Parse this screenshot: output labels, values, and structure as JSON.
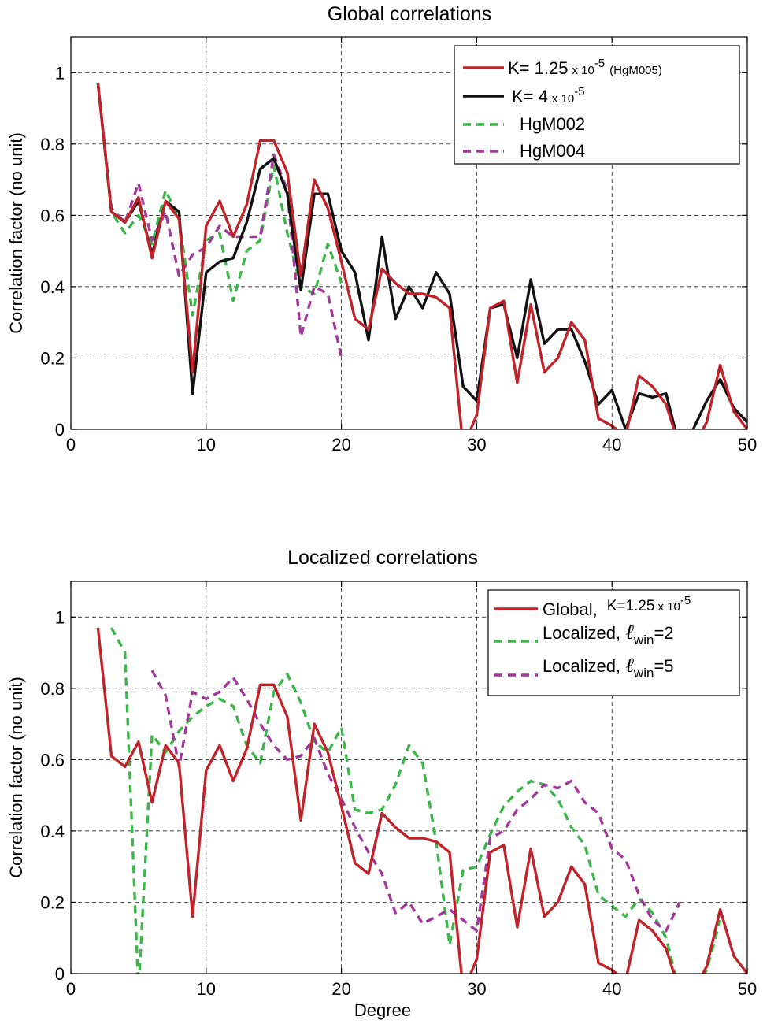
{
  "colors": {
    "red": "#c1232b",
    "black": "#111111",
    "green": "#3cb54a",
    "purple": "#a0399a"
  },
  "chart_data": [
    {
      "type": "line",
      "title": "Global correlations",
      "xlabel": "",
      "ylabel": "Correlation factor (no unit)",
      "xlim": [
        0,
        50
      ],
      "ylim": [
        0,
        1.1
      ],
      "xticks": [
        "0",
        "10",
        "20",
        "30",
        "40",
        "50"
      ],
      "yticks": [
        "0",
        "0.2",
        "0.4",
        "0.6",
        "0.8",
        "1"
      ],
      "grid": true,
      "legend_position": "top-right",
      "legend": {
        "red_prefix": "K= 1.25",
        "red_times": "x 10",
        "red_exp": "-5",
        "red_suffix": "(HgM005)",
        "black_prefix": "K= 4",
        "black_times": "x 10",
        "black_exp": "-5",
        "green_name": "HgM002",
        "purple_name": "HgM004"
      },
      "series": [
        {
          "name": "K= 1.25 x 10-5 (HgM005)",
          "color": "red",
          "style": "solid",
          "x": [
            2,
            3,
            4,
            5,
            6,
            7,
            8,
            9,
            10,
            11,
            12,
            13,
            14,
            15,
            16,
            17,
            18,
            19,
            20,
            21,
            22,
            23,
            24,
            25,
            26,
            27,
            28,
            29,
            30,
            31,
            32,
            33,
            34,
            35,
            36,
            37,
            38,
            39,
            40,
            41,
            42,
            43,
            44,
            45,
            46,
            47,
            48,
            49,
            50
          ],
          "y": [
            0.97,
            0.61,
            0.58,
            0.65,
            0.48,
            0.64,
            0.59,
            0.16,
            0.57,
            0.64,
            0.54,
            0.63,
            0.81,
            0.81,
            0.72,
            0.43,
            0.7,
            0.62,
            0.47,
            0.31,
            0.28,
            0.45,
            0.41,
            0.38,
            0.38,
            0.37,
            0.34,
            -0.05,
            0.04,
            0.34,
            0.36,
            0.13,
            0.35,
            0.16,
            0.2,
            0.3,
            0.25,
            0.03,
            0.01,
            -0.02,
            0.15,
            0.12,
            0.07,
            -0.05,
            -0.05,
            0.02,
            0.18,
            0.05,
            0.0
          ]
        },
        {
          "name": "K= 4 x 10-5",
          "color": "black",
          "style": "solid",
          "x": [
            2,
            3,
            4,
            5,
            6,
            7,
            8,
            9,
            10,
            11,
            12,
            13,
            14,
            15,
            16,
            17,
            18,
            19,
            20,
            21,
            22,
            23,
            24,
            25,
            26,
            27,
            28,
            29,
            30,
            31,
            32,
            33,
            34,
            35,
            36,
            37,
            38,
            39,
            40,
            41,
            42,
            43,
            44,
            45,
            46,
            47,
            48,
            49,
            50
          ],
          "y": [
            0.97,
            0.61,
            0.58,
            0.64,
            0.49,
            0.64,
            0.61,
            0.1,
            0.44,
            0.47,
            0.48,
            0.58,
            0.73,
            0.76,
            0.66,
            0.39,
            0.66,
            0.66,
            0.5,
            0.44,
            0.25,
            0.54,
            0.31,
            0.4,
            0.34,
            0.44,
            0.38,
            0.12,
            0.08,
            0.34,
            0.35,
            0.2,
            0.42,
            0.24,
            0.28,
            0.28,
            0.19,
            0.07,
            0.11,
            0.0,
            0.1,
            0.09,
            0.1,
            -0.05,
            0.0,
            0.08,
            0.14,
            0.06,
            0.02
          ]
        },
        {
          "name": "HgM002",
          "color": "green",
          "style": "dashed",
          "x": [
            2,
            3,
            4,
            5,
            6,
            7,
            8,
            9,
            10,
            11,
            12,
            13,
            14,
            15,
            16,
            17,
            18,
            19,
            20
          ],
          "y": [
            0.97,
            0.61,
            0.55,
            0.6,
            0.52,
            0.67,
            0.59,
            0.32,
            0.53,
            0.55,
            0.36,
            0.5,
            0.53,
            0.74,
            0.55,
            0.4,
            0.38,
            0.52,
            0.41
          ]
        },
        {
          "name": "HgM004",
          "color": "purple",
          "style": "dashed",
          "x": [
            2,
            3,
            4,
            5,
            6,
            7,
            8,
            9,
            10,
            11,
            12,
            13,
            14,
            15,
            16,
            17,
            18,
            19,
            20
          ],
          "y": [
            0.97,
            0.62,
            0.58,
            0.69,
            0.53,
            0.61,
            0.43,
            0.49,
            0.51,
            0.57,
            0.54,
            0.54,
            0.54,
            0.77,
            0.67,
            0.26,
            0.4,
            0.38,
            0.2
          ]
        }
      ]
    },
    {
      "type": "line",
      "title": "Localized correlations",
      "xlabel": "Degree",
      "ylabel": "Correlation factor (no unit)",
      "xlim": [
        0,
        50
      ],
      "ylim": [
        0,
        1.1
      ],
      "xticks": [
        "0",
        "10",
        "20",
        "30",
        "40",
        "50"
      ],
      "yticks": [
        "0",
        "0.2",
        "0.4",
        "0.6",
        "0.8",
        "1"
      ],
      "grid": true,
      "legend_position": "top-right",
      "legend": {
        "red_name": "Global,",
        "red_k": "K=1.25",
        "red_times": "x 10",
        "red_exp": "-5",
        "green_prefix": "Localized,",
        "green_sub": "win",
        "green_suffix": "=2",
        "purple_prefix": "Localized,",
        "purple_sub": "win",
        "purple_suffix": "=5",
        "ell": "ℓ"
      },
      "series": [
        {
          "name": "Global, K=1.25 x 10-5",
          "color": "red",
          "style": "solid",
          "x": [
            2,
            3,
            4,
            5,
            6,
            7,
            8,
            9,
            10,
            11,
            12,
            13,
            14,
            15,
            16,
            17,
            18,
            19,
            20,
            21,
            22,
            23,
            24,
            25,
            26,
            27,
            28,
            29,
            30,
            31,
            32,
            33,
            34,
            35,
            36,
            37,
            38,
            39,
            40,
            41,
            42,
            43,
            44,
            45,
            46,
            47,
            48,
            49,
            50
          ],
          "y": [
            0.97,
            0.61,
            0.58,
            0.65,
            0.48,
            0.64,
            0.59,
            0.16,
            0.57,
            0.64,
            0.54,
            0.63,
            0.81,
            0.81,
            0.72,
            0.43,
            0.7,
            0.62,
            0.47,
            0.31,
            0.28,
            0.45,
            0.41,
            0.38,
            0.38,
            0.37,
            0.34,
            -0.05,
            0.04,
            0.34,
            0.36,
            0.13,
            0.35,
            0.16,
            0.2,
            0.3,
            0.25,
            0.03,
            0.01,
            -0.02,
            0.15,
            0.12,
            0.07,
            -0.05,
            -0.05,
            0.02,
            0.18,
            0.05,
            0.0
          ]
        },
        {
          "name": "Localized, ℓwin=2",
          "color": "green",
          "style": "dashed",
          "x": [
            3,
            4,
            5,
            6,
            7,
            8,
            9,
            10,
            11,
            12,
            13,
            14,
            15,
            16,
            17,
            18,
            19,
            20,
            21,
            22,
            23,
            24,
            25,
            26,
            27,
            28,
            29,
            30,
            31,
            32,
            33,
            34,
            35,
            36,
            37,
            38,
            39,
            40,
            41,
            42,
            43,
            44,
            45,
            46,
            47,
            48
          ],
          "y": [
            0.97,
            0.9,
            -0.05,
            0.67,
            0.62,
            0.68,
            0.72,
            0.75,
            0.77,
            0.75,
            0.64,
            0.59,
            0.79,
            0.84,
            0.76,
            0.65,
            0.62,
            0.69,
            0.46,
            0.45,
            0.46,
            0.53,
            0.64,
            0.59,
            0.37,
            0.08,
            0.29,
            0.3,
            0.39,
            0.47,
            0.51,
            0.54,
            0.53,
            0.49,
            0.41,
            0.36,
            0.22,
            0.19,
            0.16,
            0.21,
            0.17,
            0.1,
            -0.05,
            -0.05,
            0.01,
            0.15
          ]
        },
        {
          "name": "Localized, ℓwin=5",
          "color": "purple",
          "style": "dashed",
          "x": [
            6,
            7,
            8,
            9,
            10,
            11,
            12,
            13,
            14,
            15,
            16,
            17,
            18,
            19,
            20,
            21,
            22,
            23,
            24,
            25,
            26,
            27,
            28,
            29,
            30,
            31,
            32,
            33,
            34,
            35,
            36,
            37,
            38,
            39,
            40,
            41,
            42,
            43,
            44,
            45
          ],
          "y": [
            0.85,
            0.78,
            0.58,
            0.79,
            0.77,
            0.79,
            0.83,
            0.77,
            0.7,
            0.64,
            0.6,
            0.61,
            0.66,
            0.56,
            0.49,
            0.41,
            0.34,
            0.28,
            0.17,
            0.2,
            0.14,
            0.16,
            0.18,
            0.15,
            0.12,
            0.38,
            0.4,
            0.46,
            0.49,
            0.53,
            0.52,
            0.54,
            0.48,
            0.45,
            0.35,
            0.32,
            0.22,
            0.15,
            0.12,
            0.2
          ]
        }
      ]
    }
  ]
}
